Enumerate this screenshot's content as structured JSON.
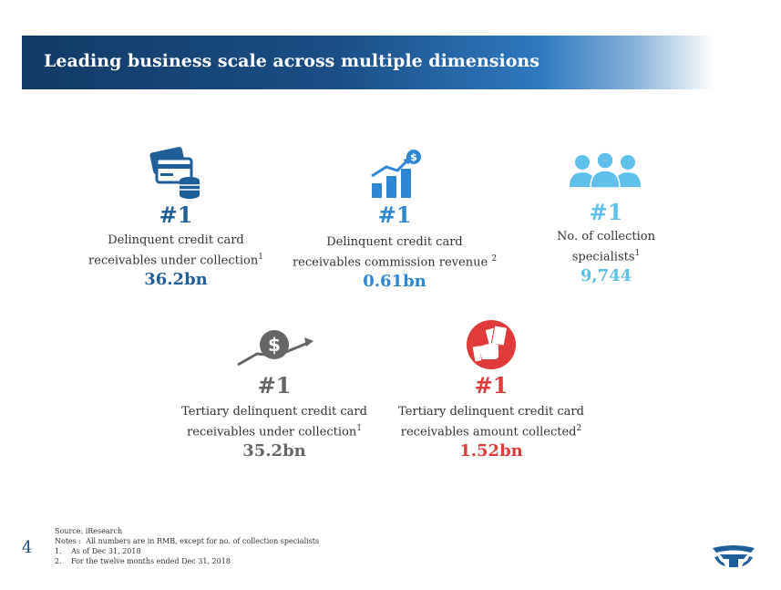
{
  "header": {
    "title": "Leading business scale across multiple dimensions"
  },
  "colors": {
    "dark_blue": "#1f5f99",
    "mid_blue": "#2f87d4",
    "light_blue": "#5fc0ec",
    "gray": "#666666",
    "red": "#e03a3a"
  },
  "stats": [
    {
      "icon": "credit-card-coins-icon",
      "rank": "#1",
      "desc_line1": "Delinquent credit card",
      "desc_line2": "receivables under collection",
      "sup": "1",
      "value": "36.2bn"
    },
    {
      "icon": "growth-chart-dollar-icon",
      "rank": "#1",
      "desc_line1": "Delinquent credit card",
      "desc_line2": "receivables commission revenue ",
      "sup": "2",
      "value": "0.61bn"
    },
    {
      "icon": "collection-team-icon",
      "rank": "#1",
      "desc_line1": "No. of collection",
      "desc_line2": "specialists",
      "sup": "1",
      "value": "9,744"
    },
    {
      "icon": "dollar-coin-rising-icon",
      "rank": "#1",
      "desc_line1": "Tertiary delinquent credit card",
      "desc_line2": "receivables under collection",
      "sup": "1",
      "value": "35.2bn"
    },
    {
      "icon": "cash-in-hand-icon",
      "rank": "#1",
      "desc_line1": "Tertiary delinquent credit card",
      "desc_line2": "receivables amount collected",
      "sup": "2",
      "value": "1.52bn"
    }
  ],
  "footer": {
    "source": "Source: iResearch",
    "notes_label": "Notes :",
    "notes_text": "All numbers are in RMB, except for no. of collection specialists",
    "note1_num": "1.",
    "note1": "As of Dec 31, 2018",
    "note2_num": "2.",
    "note2": "For the twelve months ended Dec 31, 2018",
    "page_number": "4"
  }
}
